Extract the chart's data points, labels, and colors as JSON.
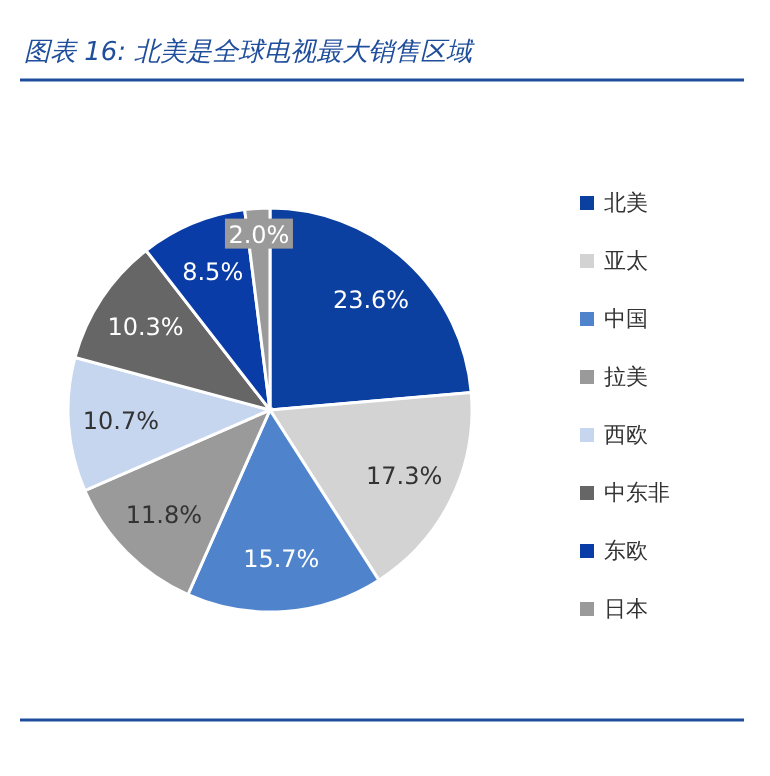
{
  "chart_data": {
    "type": "pie",
    "title": "图表 16:  北美是全球电视最大销售区域",
    "categories": [
      "北美",
      "亚太",
      "中国",
      "拉美",
      "西欧",
      "中东非",
      "东欧",
      "日本"
    ],
    "values": [
      23.6,
      17.3,
      15.7,
      11.8,
      10.7,
      10.3,
      8.5,
      2.0
    ],
    "value_labels": [
      "23.6%",
      "17.3%",
      "15.7%",
      "11.8%",
      "10.7%",
      "10.3%",
      "8.5%",
      "2.0%"
    ],
    "colors": [
      "#0b3fa0",
      "#d3d3d3",
      "#4f84cc",
      "#9a9a9a",
      "#c6d6ef",
      "#666666",
      "#0a3ca8",
      "#9a9a9a"
    ],
    "legend": "right"
  }
}
